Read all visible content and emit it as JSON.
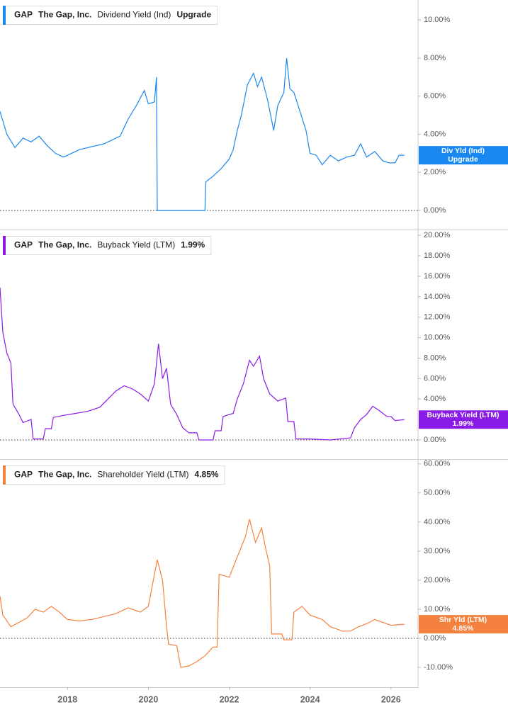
{
  "chart_data": [
    {
      "type": "line",
      "ticker": "GAP",
      "company": "The Gap, Inc.",
      "xlim": [
        2016.33,
        2026.67
      ],
      "ylim": [
        -1,
        11.05
      ],
      "yticks": [
        {
          "value": 0,
          "label": "0.00%"
        },
        {
          "value": 2,
          "label": "2.00%"
        },
        {
          "value": 4,
          "label": "4.00%"
        },
        {
          "value": 6,
          "label": "6.00%"
        },
        {
          "value": 8,
          "label": "8.00%"
        },
        {
          "value": 10,
          "label": "10.00%"
        }
      ],
      "x": [
        2016.33,
        2016.5,
        2016.7,
        2016.9,
        2017.1,
        2017.3,
        2017.5,
        2017.7,
        2017.9,
        2018.1,
        2018.3,
        2018.5,
        2018.7,
        2018.9,
        2019.1,
        2019.3,
        2019.5,
        2019.7,
        2019.9,
        2020.0,
        2020.15,
        2020.2,
        2020.22,
        2021.0,
        2021.4,
        2021.42,
        2021.6,
        2021.8,
        2022.0,
        2022.1,
        2022.2,
        2022.3,
        2022.45,
        2022.6,
        2022.7,
        2022.8,
        2022.95,
        2023.1,
        2023.2,
        2023.35,
        2023.42,
        2023.5,
        2023.6,
        2023.75,
        2023.9,
        2024.0,
        2024.15,
        2024.3,
        2024.5,
        2024.7,
        2024.9,
        2025.1,
        2025.25,
        2025.4,
        2025.6,
        2025.8,
        2025.95,
        2026.1,
        2026.2,
        2026.33
      ],
      "series": [
        {
          "name": "Dividend Yield (Ind)",
          "color": "#1a88f0",
          "last_label": "Upgrade",
          "badge_label": "Div Yld (Ind)",
          "badge_value": "Upgrade",
          "values": [
            5.2,
            4.0,
            3.3,
            3.8,
            3.6,
            3.9,
            3.4,
            3.0,
            2.8,
            3.0,
            3.2,
            3.3,
            3.4,
            3.5,
            3.7,
            3.9,
            4.8,
            5.5,
            6.3,
            5.6,
            5.7,
            7.0,
            0,
            0,
            0,
            1.5,
            1.8,
            2.2,
            2.7,
            3.2,
            4.2,
            5.0,
            6.6,
            7.2,
            6.5,
            7.0,
            5.8,
            4.2,
            5.5,
            6.2,
            8.0,
            6.4,
            6.2,
            5.2,
            4.2,
            3.0,
            2.9,
            2.4,
            2.9,
            2.6,
            2.8,
            2.9,
            3.5,
            2.8,
            3.1,
            2.6,
            2.5,
            2.5,
            2.9,
            2.9
          ]
        }
      ]
    },
    {
      "type": "line",
      "ticker": "GAP",
      "company": "The Gap, Inc.",
      "xlim": [
        2016.33,
        2026.67
      ],
      "ylim": [
        -1.87,
        20.5
      ],
      "yticks": [
        {
          "value": 0,
          "label": "0.00%"
        },
        {
          "value": 2,
          "label": "2.00%"
        },
        {
          "value": 4,
          "label": "4.00%"
        },
        {
          "value": 6,
          "label": "6.00%"
        },
        {
          "value": 8,
          "label": "8.00%"
        },
        {
          "value": 10,
          "label": "10.00%"
        },
        {
          "value": 12,
          "label": "12.00%"
        },
        {
          "value": 14,
          "label": "14.00%"
        },
        {
          "value": 16,
          "label": "16.00%"
        },
        {
          "value": 18,
          "label": "18.00%"
        },
        {
          "value": 20,
          "label": "20.00%"
        }
      ],
      "x": [
        2016.33,
        2016.4,
        2016.5,
        2016.6,
        2016.65,
        2016.8,
        2016.9,
        2017.1,
        2017.15,
        2017.4,
        2017.45,
        2017.6,
        2017.65,
        2017.9,
        2018.2,
        2018.5,
        2018.8,
        2019.0,
        2019.2,
        2019.4,
        2019.6,
        2019.8,
        2020.0,
        2020.15,
        2020.25,
        2020.35,
        2020.45,
        2020.55,
        2020.7,
        2020.85,
        2021.0,
        2021.2,
        2021.25,
        2021.6,
        2021.65,
        2021.8,
        2021.85,
        2022.1,
        2022.2,
        2022.35,
        2022.5,
        2022.6,
        2022.75,
        2022.85,
        2023.0,
        2023.2,
        2023.4,
        2023.45,
        2023.6,
        2023.65,
        2024.0,
        2024.5,
        2025.0,
        2025.1,
        2025.25,
        2025.4,
        2025.55,
        2025.7,
        2025.9,
        2026.0,
        2026.1,
        2026.33
      ],
      "series": [
        {
          "name": "Buyback Yield (LTM)",
          "color": "#8a1be6",
          "last_label": "1.99%",
          "badge_label": "Buyback Yield (LTM)",
          "badge_value": "1.99%",
          "values": [
            14.9,
            10.5,
            8.5,
            7.5,
            3.5,
            2.5,
            1.7,
            2.0,
            0.1,
            0.1,
            1.1,
            1.1,
            2.2,
            2.4,
            2.6,
            2.8,
            3.2,
            4.0,
            4.8,
            5.3,
            5.0,
            4.5,
            3.8,
            5.5,
            9.4,
            6.0,
            7.0,
            3.5,
            2.5,
            1.2,
            0.7,
            0.7,
            0.0,
            0.0,
            0.9,
            0.9,
            2.3,
            2.6,
            4.0,
            5.5,
            7.8,
            7.2,
            8.2,
            6.0,
            4.5,
            3.8,
            4.1,
            1.8,
            1.8,
            0.1,
            0.1,
            0.0,
            0.2,
            1.2,
            2.0,
            2.5,
            3.3,
            2.9,
            2.3,
            2.3,
            1.9,
            1.99
          ]
        }
      ]
    },
    {
      "type": "line",
      "ticker": "GAP",
      "company": "The Gap, Inc.",
      "xlim": [
        2016.33,
        2026.67
      ],
      "ylim": [
        -16.8,
        61.4
      ],
      "xticks": [
        2018,
        2020,
        2022,
        2024,
        2026
      ],
      "yticks": [
        {
          "value": -10,
          "label": "-10.00%"
        },
        {
          "value": 0,
          "label": "0.00%"
        },
        {
          "value": 10,
          "label": "10.00%"
        },
        {
          "value": 20,
          "label": "20.00%"
        },
        {
          "value": 30,
          "label": "30.00%"
        },
        {
          "value": 40,
          "label": "40.00%"
        },
        {
          "value": 50,
          "label": "50.00%"
        },
        {
          "value": 60,
          "label": "60.00%"
        }
      ],
      "x": [
        2016.33,
        2016.4,
        2016.6,
        2016.8,
        2017.0,
        2017.2,
        2017.4,
        2017.6,
        2017.8,
        2018.0,
        2018.3,
        2018.6,
        2018.9,
        2019.2,
        2019.5,
        2019.8,
        2020.0,
        2020.15,
        2020.22,
        2020.35,
        2020.45,
        2020.5,
        2020.7,
        2020.8,
        2021.0,
        2021.2,
        2021.4,
        2021.6,
        2021.7,
        2021.75,
        2022.0,
        2022.2,
        2022.4,
        2022.5,
        2022.65,
        2022.8,
        2022.9,
        2023.0,
        2023.05,
        2023.3,
        2023.35,
        2023.55,
        2023.6,
        2023.8,
        2024.0,
        2024.3,
        2024.5,
        2024.8,
        2025.0,
        2025.2,
        2025.4,
        2025.6,
        2025.8,
        2026.0,
        2026.33
      ],
      "series": [
        {
          "name": "Shareholder Yield (LTM)",
          "color": "#f5813f",
          "last_label": "4.85%",
          "badge_label": "Shr Yld (LTM)",
          "badge_value": "4.85%",
          "values": [
            14.5,
            8,
            4,
            5.5,
            7.0,
            10,
            9,
            11,
            9,
            6.5,
            6,
            6.5,
            7.5,
            8.5,
            10.5,
            9.0,
            11,
            22,
            27,
            20,
            4,
            -2,
            -2.5,
            -10,
            -9.5,
            -8,
            -6,
            -3,
            -3,
            22,
            21,
            28,
            35,
            41,
            33,
            38,
            31,
            25,
            1.5,
            1.5,
            -0.5,
            -0.5,
            9,
            11,
            8,
            6.5,
            4,
            2.5,
            2.5,
            4,
            5,
            6.5,
            5.5,
            4.5,
            4.85
          ]
        }
      ]
    }
  ]
}
